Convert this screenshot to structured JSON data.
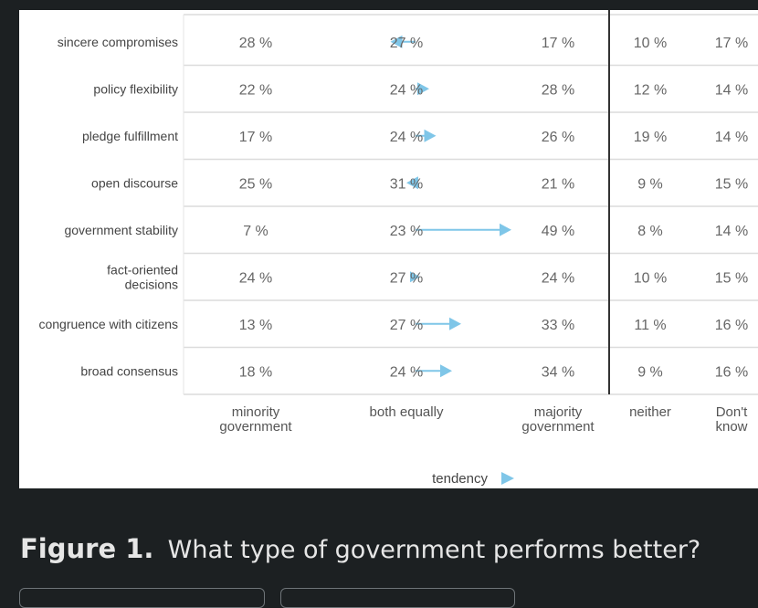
{
  "figure": {
    "label": "Figure 1.",
    "text": "What type of government performs better?"
  },
  "chart_data": {
    "type": "table",
    "columns": [
      "minority\ngovernment",
      "both equally",
      "majority\ngovernment",
      "neither",
      "Don't\nknow"
    ],
    "rows": [
      {
        "label": "sincere compromises",
        "values": [
          28,
          27,
          17,
          10,
          17
        ],
        "tendency": "toward minority government"
      },
      {
        "label": "policy flexibility",
        "values": [
          22,
          24,
          28,
          12,
          14
        ],
        "tendency": "slight toward majority government"
      },
      {
        "label": "pledge fulfillment",
        "values": [
          17,
          24,
          26,
          19,
          14
        ],
        "tendency": "slight toward majority government"
      },
      {
        "label": "open discourse",
        "values": [
          25,
          31,
          21,
          9,
          15
        ],
        "tendency": "very slight toward minority government"
      },
      {
        "label": "government stability",
        "values": [
          7,
          23,
          49,
          8,
          14
        ],
        "tendency": "strongly toward majority government"
      },
      {
        "label": "fact-oriented\ndecisions",
        "values": [
          24,
          27,
          24,
          10,
          15
        ],
        "tendency": "neutral"
      },
      {
        "label": "congruence with citizens",
        "values": [
          13,
          27,
          33,
          11,
          16
        ],
        "tendency": "toward majority government"
      },
      {
        "label": "broad consensus",
        "values": [
          18,
          24,
          34,
          9,
          16
        ],
        "tendency": "toward majority government"
      }
    ],
    "value_suffix": " %",
    "tendency_label": "tendency",
    "arrow_color": "#7fc6e8"
  }
}
